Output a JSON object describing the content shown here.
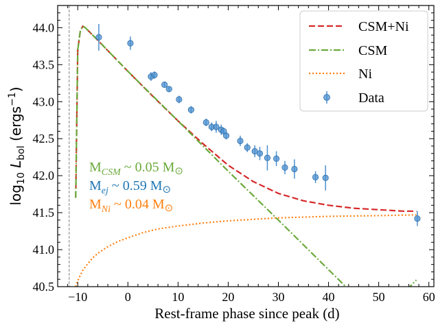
{
  "chart_data": {
    "type": "line",
    "xlabel": "Rest-frame phase since peak (d)",
    "ylabel_parts": {
      "prefix": "log",
      "sub10": "10",
      "var": "L",
      "varsub": "bol",
      "unit": "(ergs",
      "unitsup": "−1",
      "close": ")"
    },
    "xlim": [
      -14,
      61
    ],
    "ylim": [
      40.5,
      44.3
    ],
    "xticks": [
      -10,
      0,
      10,
      20,
      30,
      40,
      50,
      60
    ],
    "xtick_labels": [
      "−10",
      "0",
      "10",
      "20",
      "30",
      "40",
      "50",
      "60"
    ],
    "yticks": [
      40.5,
      41.0,
      41.5,
      42.0,
      42.5,
      43.0,
      43.5,
      44.0
    ],
    "ytick_labels": [
      "40.5",
      "41.0",
      "41.5",
      "42.0",
      "42.5",
      "43.0",
      "43.5",
      "44.0"
    ],
    "explosion_epoch_line": -11.7,
    "legend": {
      "position": "top-right",
      "entries": [
        "CSM+Ni",
        "CSM",
        "Ni",
        "Data"
      ]
    },
    "series": [
      {
        "name": "CSM+Ni",
        "style": "dashed",
        "color": "#d62728",
        "x": [
          -10.4,
          -10.0,
          -9.5,
          -9.0,
          -8.5,
          -6,
          -3,
          0,
          5,
          10,
          15,
          20,
          25,
          30,
          35,
          40,
          45,
          50,
          55,
          57.5
        ],
        "y": [
          41.7,
          43.7,
          43.95,
          44.02,
          44.0,
          43.83,
          43.62,
          43.41,
          43.07,
          42.74,
          42.43,
          42.14,
          41.92,
          41.76,
          41.66,
          41.6,
          41.56,
          41.54,
          41.52,
          41.52
        ]
      },
      {
        "name": "CSM",
        "style": "dashdot",
        "color": "#6aaa3a",
        "x": [
          -10.4,
          -10.0,
          -9.5,
          -9.0,
          -8.5,
          -6,
          0,
          10,
          20,
          30,
          40,
          50,
          57.5
        ],
        "y": [
          41.7,
          43.7,
          43.95,
          44.02,
          44.0,
          43.83,
          43.41,
          42.74,
          42.06,
          41.4,
          40.73,
          40.06,
          40.59
        ]
      },
      {
        "name": "Ni",
        "style": "dotted",
        "color": "#ff7f0e",
        "x": [
          -10.4,
          -10.0,
          -9.0,
          -8.0,
          -7.0,
          -6.0,
          -4.0,
          -2.0,
          0,
          3,
          6,
          10,
          15,
          20,
          25,
          30,
          40,
          50,
          57.5
        ],
        "y": [
          40.5,
          40.58,
          40.72,
          40.81,
          40.89,
          40.95,
          41.04,
          41.11,
          41.16,
          41.23,
          41.28,
          41.32,
          41.36,
          41.39,
          41.41,
          41.43,
          41.45,
          41.46,
          41.47
        ]
      }
    ],
    "data_points": {
      "name": "Data",
      "color": "#4a8fd0",
      "points": [
        {
          "x": -5.8,
          "y": 43.87,
          "err": 0.18
        },
        {
          "x": 0.5,
          "y": 43.79,
          "err": 0.09
        },
        {
          "x": 4.6,
          "y": 43.34,
          "err": 0.06
        },
        {
          "x": 5.3,
          "y": 43.36,
          "err": 0.05
        },
        {
          "x": 7.3,
          "y": 43.23,
          "err": 0.04
        },
        {
          "x": 8.2,
          "y": 43.17,
          "err": 0.04
        },
        {
          "x": 10.2,
          "y": 43.03,
          "err": 0.05
        },
        {
          "x": 12.6,
          "y": 42.89,
          "err": 0.05
        },
        {
          "x": 15.6,
          "y": 42.72,
          "err": 0.05
        },
        {
          "x": 16.7,
          "y": 42.66,
          "err": 0.06
        },
        {
          "x": 17.6,
          "y": 42.66,
          "err": 0.08
        },
        {
          "x": 18.6,
          "y": 42.62,
          "err": 0.07
        },
        {
          "x": 19.1,
          "y": 42.6,
          "err": 0.05
        },
        {
          "x": 19.6,
          "y": 42.54,
          "err": 0.05
        },
        {
          "x": 22.4,
          "y": 42.47,
          "err": 0.07
        },
        {
          "x": 23.8,
          "y": 42.38,
          "err": 0.06
        },
        {
          "x": 25.3,
          "y": 42.33,
          "err": 0.08
        },
        {
          "x": 26.3,
          "y": 42.3,
          "err": 0.09
        },
        {
          "x": 27.8,
          "y": 42.24,
          "err": 0.17
        },
        {
          "x": 29.6,
          "y": 42.23,
          "err": 0.1
        },
        {
          "x": 31.3,
          "y": 42.11,
          "err": 0.09
        },
        {
          "x": 33.2,
          "y": 42.09,
          "err": 0.13
        },
        {
          "x": 37.4,
          "y": 41.98,
          "err": 0.08
        },
        {
          "x": 39.4,
          "y": 41.97,
          "err": 0.17
        },
        {
          "x": 57.7,
          "y": 41.42,
          "err": 0.1
        }
      ]
    },
    "annotations": [
      {
        "id": "csm",
        "color": "#6aaa3a",
        "pre": "M",
        "sub": "CSM",
        "post": " ~ 0.05 M",
        "sym": "⊙"
      },
      {
        "id": "ej",
        "color": "#1f77b4",
        "pre": "M",
        "sub": "ej",
        "post": " ~ 0.59 M",
        "sym": "⊙"
      },
      {
        "id": "ni",
        "color": "#ff7f0e",
        "pre": "M",
        "sub": "Ni",
        "post": " ~ 0.04 M",
        "sym": "⊙"
      }
    ]
  }
}
